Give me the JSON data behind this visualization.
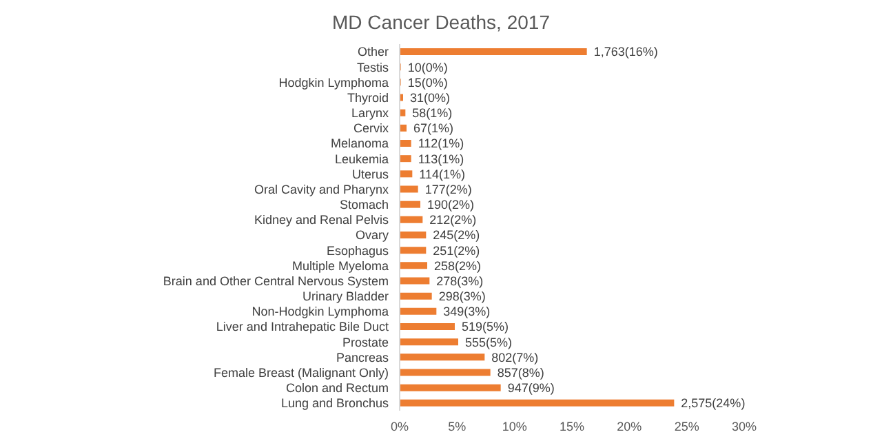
{
  "chart_data": {
    "type": "bar",
    "orientation": "horizontal",
    "title": "MD Cancer Deaths, 2017",
    "categories": [
      "Other",
      "Testis",
      "Hodgkin Lymphoma",
      "Thyroid",
      "Larynx",
      "Cervix",
      "Melanoma",
      "Leukemia",
      "Uterus",
      "Oral Cavity and Pharynx",
      "Stomach",
      "Kidney and Renal Pelvis",
      "Ovary",
      "Esophagus",
      "Multiple Myeloma",
      "Brain and Other Central Nervous System",
      "Urinary Bladder",
      "Non-Hodgkin Lymphoma",
      "Liver and Intrahepatic Bile Duct",
      "Prostate",
      "Pancreas",
      "Female Breast (Malignant Only)",
      "Colon and Rectum",
      "Lung and Bronchus"
    ],
    "values": [
      16.3,
      0.1,
      0.1,
      0.3,
      0.5,
      0.6,
      1.0,
      1.0,
      1.1,
      1.6,
      1.8,
      2.0,
      2.3,
      2.3,
      2.4,
      2.6,
      2.8,
      3.2,
      4.8,
      5.1,
      7.4,
      7.9,
      8.8,
      23.9
    ],
    "value_labels": [
      "1,763(16%)",
      "10(0%)",
      "15(0%)",
      "31(0%)",
      "58(1%)",
      "67(1%)",
      "112(1%)",
      "113(1%)",
      "114(1%)",
      "177(2%)",
      "190(2%)",
      "212(2%)",
      "245(2%)",
      "251(2%)",
      "258(2%)",
      "278(3%)",
      "298(3%)",
      "349(3%)",
      "519(5%)",
      "555(5%)",
      "802(7%)",
      "857(8%)",
      "947(9%)",
      "2,575(24%)"
    ],
    "color": "#ed7d31",
    "xlim": [
      0,
      30
    ],
    "xticks": [
      {
        "value": 0,
        "label": "0%"
      },
      {
        "value": 5,
        "label": "5%"
      },
      {
        "value": 10,
        "label": "10%"
      },
      {
        "value": 15,
        "label": "15%"
      },
      {
        "value": 20,
        "label": "20%"
      },
      {
        "value": 25,
        "label": "25%"
      },
      {
        "value": 30,
        "label": "30%"
      }
    ],
    "grid": false,
    "legend": false
  }
}
